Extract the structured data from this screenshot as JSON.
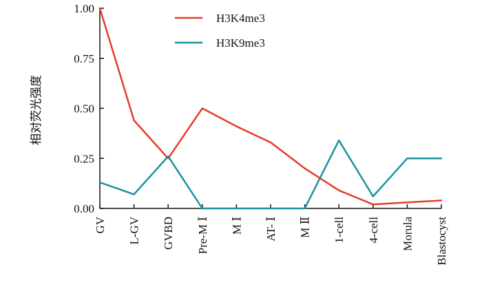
{
  "chart_data": {
    "type": "line",
    "title": "",
    "xlabel": "",
    "ylabel": "相对荧光强度",
    "categories": [
      "GV",
      "L-GV",
      "GVBD",
      "Pre-M Ⅰ",
      "M Ⅰ",
      "AT- Ⅰ",
      "M Ⅱ",
      "1-cell",
      "4-cell",
      "Morula",
      "Blastocyst"
    ],
    "ylim": [
      0,
      1
    ],
    "yticks": [
      "0.00",
      "0.25",
      "0.50",
      "0.75",
      "1.00"
    ],
    "grid": false,
    "legend_position": "top-center",
    "series": [
      {
        "name": "H3K4me3",
        "color": "#e8392a",
        "values": [
          1.0,
          0.44,
          0.25,
          0.5,
          0.41,
          0.33,
          0.2,
          0.09,
          0.02,
          0.03,
          0.04
        ]
      },
      {
        "name": "H3K9me3",
        "color": "#17939a",
        "values": [
          0.13,
          0.07,
          0.26,
          0.0,
          0.0,
          0.0,
          0.0,
          0.34,
          0.06,
          0.25,
          0.25
        ]
      }
    ]
  }
}
